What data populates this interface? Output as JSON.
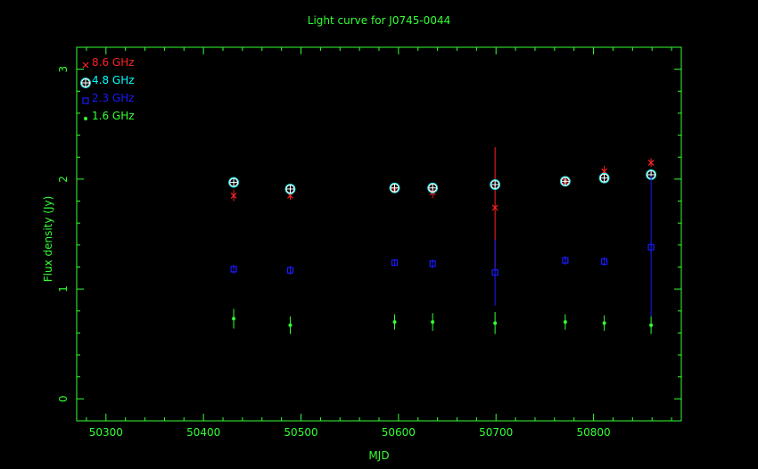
{
  "chart_data": {
    "type": "scatter",
    "title": "Light curve for J0745-0044",
    "xlabel": "MJD",
    "ylabel": "Flux density (Jy)",
    "xlim": [
      50270,
      50890
    ],
    "ylim": [
      -0.2,
      3.2
    ],
    "xticks": [
      50300,
      50400,
      50500,
      50600,
      50700,
      50800
    ],
    "yticks": [
      0,
      1,
      2,
      3
    ],
    "grid": false,
    "legend_position": "top-left",
    "colors": {
      "background": "#000000",
      "axes": "#33ff33",
      "title": "#33ff33",
      "8.6 GHz": "#ff2222",
      "4.8 GHz": "#00ffff",
      "2.3 GHz": "#1a1aff",
      "1.6 GHz": "#33ff33"
    },
    "series": [
      {
        "name": "8.6 GHz",
        "marker": "x",
        "points": [
          {
            "x": 50431,
            "y": 1.85,
            "err": 0.05
          },
          {
            "x": 50489,
            "y": 1.85,
            "err": 0.04
          },
          {
            "x": 50596,
            "y": 1.9,
            "err": 0.03
          },
          {
            "x": 50635,
            "y": 1.88,
            "err": 0.05
          },
          {
            "x": 50699,
            "y": 1.74,
            "err": 0.55
          },
          {
            "x": 50771,
            "y": 1.98,
            "err": 0.03
          },
          {
            "x": 50811,
            "y": 2.07,
            "err": 0.05
          },
          {
            "x": 50859,
            "y": 2.15,
            "err": 0.04
          }
        ]
      },
      {
        "name": "4.8 GHz",
        "marker": "circle-plus",
        "points": [
          {
            "x": 50431,
            "y": 1.97,
            "err": 0.02
          },
          {
            "x": 50489,
            "y": 1.91,
            "err": 0.02
          },
          {
            "x": 50596,
            "y": 1.92,
            "err": 0.02
          },
          {
            "x": 50635,
            "y": 1.92,
            "err": 0.02
          },
          {
            "x": 50699,
            "y": 1.95,
            "err": 0.02
          },
          {
            "x": 50771,
            "y": 1.98,
            "err": 0.02
          },
          {
            "x": 50811,
            "y": 2.01,
            "err": 0.02
          },
          {
            "x": 50859,
            "y": 2.04,
            "err": 0.02
          }
        ]
      },
      {
        "name": "2.3 GHz",
        "marker": "square",
        "points": [
          {
            "x": 50431,
            "y": 1.18,
            "err": 0.04
          },
          {
            "x": 50489,
            "y": 1.17,
            "err": 0.04
          },
          {
            "x": 50596,
            "y": 1.24,
            "err": 0.03
          },
          {
            "x": 50635,
            "y": 1.23,
            "err": 0.04
          },
          {
            "x": 50699,
            "y": 1.15,
            "err": 0.3
          },
          {
            "x": 50771,
            "y": 1.26,
            "err": 0.04
          },
          {
            "x": 50811,
            "y": 1.25,
            "err": 0.04
          },
          {
            "x": 50859,
            "y": 1.38,
            "err": 0.65
          }
        ]
      },
      {
        "name": "1.6 GHz",
        "marker": "dot",
        "points": [
          {
            "x": 50431,
            "y": 0.73,
            "err": 0.09
          },
          {
            "x": 50489,
            "y": 0.67,
            "err": 0.08
          },
          {
            "x": 50596,
            "y": 0.7,
            "err": 0.07
          },
          {
            "x": 50635,
            "y": 0.7,
            "err": 0.08
          },
          {
            "x": 50699,
            "y": 0.69,
            "err": 0.1
          },
          {
            "x": 50771,
            "y": 0.7,
            "err": 0.07
          },
          {
            "x": 50811,
            "y": 0.69,
            "err": 0.07
          },
          {
            "x": 50859,
            "y": 0.67,
            "err": 0.08
          }
        ]
      }
    ]
  }
}
